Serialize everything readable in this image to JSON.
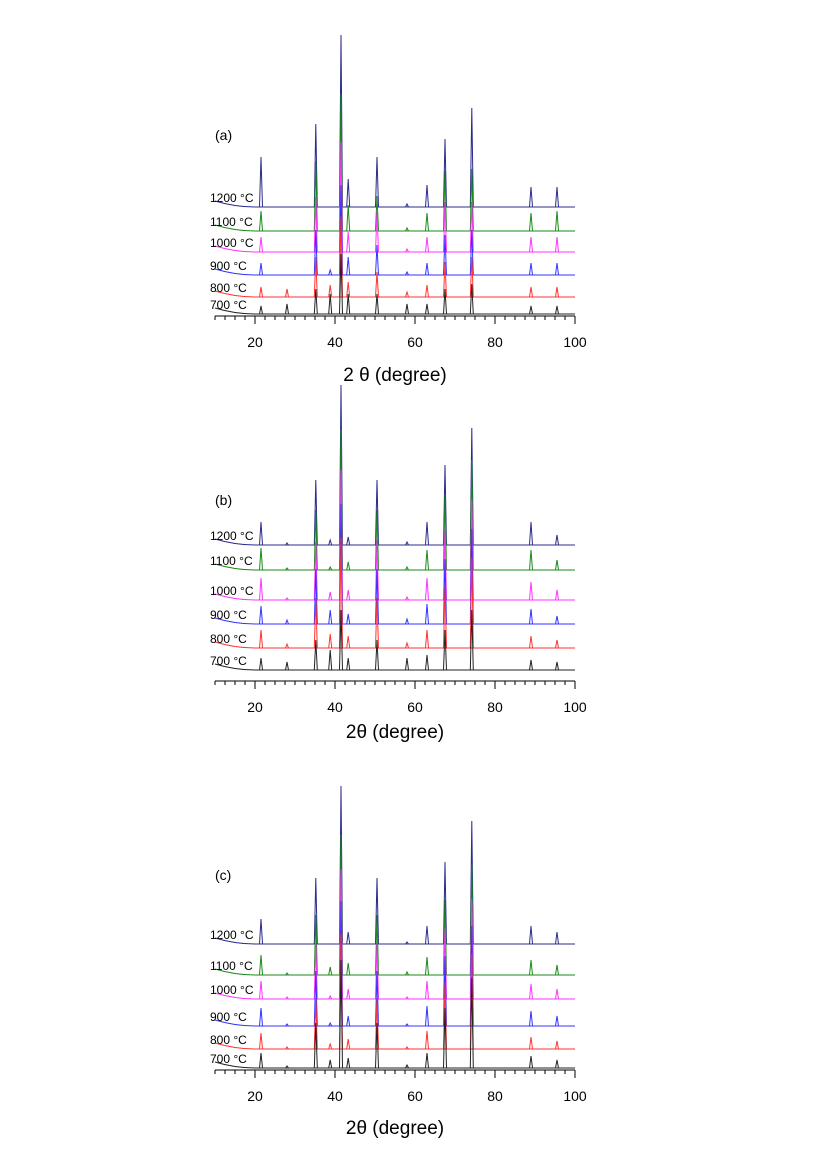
{
  "chart_data": [
    {
      "type": "line",
      "title": "(a)",
      "xlabel": "2 θ (degree)",
      "xlim": [
        10,
        100
      ],
      "xticks": [
        20,
        40,
        60,
        80,
        100
      ],
      "x": [
        21.5,
        28,
        35.2,
        38.8,
        41.5,
        43.3,
        50.5,
        58,
        63,
        67.5,
        74.2,
        89,
        95.5
      ],
      "series": [
        {
          "name": "1200 °C",
          "color": "#2b2b8c",
          "values": [
            50,
            0,
            83,
            0,
            172,
            28,
            50,
            3,
            22,
            68,
            99,
            20,
            20
          ]
        },
        {
          "name": "1100 °C",
          "color": "#1a8a1a",
          "values": [
            20,
            0,
            70,
            0,
            137,
            26,
            35,
            3,
            18,
            60,
            62,
            18,
            20
          ]
        },
        {
          "name": "1000 °C",
          "color": "#ff33ff",
          "values": [
            15,
            0,
            55,
            0,
            110,
            20,
            40,
            3,
            15,
            50,
            50,
            15,
            15
          ]
        },
        {
          "name": "900 °C",
          "color": "#3333ff",
          "values": [
            12,
            0,
            45,
            5,
            90,
            18,
            30,
            3,
            12,
            40,
            45,
            12,
            12
          ]
        },
        {
          "name": "800 °C",
          "color": "#ff3333",
          "values": [
            10,
            8,
            40,
            12,
            80,
            15,
            25,
            5,
            12,
            35,
            40,
            10,
            10
          ]
        },
        {
          "name": "700 °C",
          "color": "#222222",
          "values": [
            8,
            10,
            25,
            20,
            60,
            20,
            20,
            10,
            10,
            25,
            30,
            8,
            8
          ]
        }
      ]
    },
    {
      "type": "line",
      "title": "(b)",
      "xlabel": "2θ (degree)",
      "xlim": [
        10,
        100
      ],
      "xticks": [
        20,
        40,
        60,
        80,
        100
      ],
      "x": [
        21.5,
        28,
        35.2,
        38.8,
        41.5,
        43.3,
        50.5,
        58,
        63,
        67.5,
        74.2,
        89,
        95.5
      ],
      "series": [
        {
          "name": "1200 °C",
          "color": "#2b2b8c",
          "values": [
            23,
            2,
            65,
            5,
            160,
            8,
            65,
            3,
            23,
            80,
            117,
            23,
            10
          ]
        },
        {
          "name": "1100 °C",
          "color": "#1a8a1a",
          "values": [
            22,
            2,
            60,
            3,
            140,
            8,
            60,
            3,
            20,
            75,
            110,
            20,
            10
          ]
        },
        {
          "name": "1000 °C",
          "color": "#ff33ff",
          "values": [
            22,
            2,
            58,
            8,
            130,
            10,
            60,
            3,
            22,
            70,
            100,
            18,
            10
          ]
        },
        {
          "name": "900 °C",
          "color": "#3333ff",
          "values": [
            18,
            4,
            55,
            14,
            120,
            10,
            55,
            5,
            20,
            65,
            95,
            15,
            8
          ]
        },
        {
          "name": "800 °C",
          "color": "#ff3333",
          "values": [
            18,
            4,
            50,
            14,
            110,
            12,
            50,
            5,
            18,
            60,
            90,
            12,
            8
          ]
        },
        {
          "name": "700 °C",
          "color": "#222222",
          "values": [
            12,
            8,
            30,
            20,
            60,
            12,
            30,
            12,
            15,
            40,
            60,
            10,
            8
          ]
        }
      ]
    },
    {
      "type": "line",
      "title": "(c)",
      "xlabel": "2θ (degree)",
      "xlim": [
        10,
        100
      ],
      "xticks": [
        20,
        40,
        60,
        80,
        100
      ],
      "x": [
        21.5,
        28,
        35.2,
        38.8,
        41.5,
        43.3,
        50.5,
        58,
        63,
        67.5,
        74.2,
        89,
        95.5
      ],
      "series": [
        {
          "name": "1200 °C",
          "color": "#2b2b8c",
          "values": [
            25,
            0,
            66,
            0,
            158,
            12,
            66,
            2,
            18,
            82,
            123,
            18,
            12
          ]
        },
        {
          "name": "1100 °C",
          "color": "#1a8a1a",
          "values": [
            20,
            2,
            60,
            8,
            140,
            12,
            60,
            3,
            18,
            75,
            110,
            15,
            10
          ]
        },
        {
          "name": "1000 °C",
          "color": "#ff33ff",
          "values": [
            18,
            2,
            55,
            3,
            130,
            10,
            55,
            2,
            18,
            70,
            100,
            15,
            10
          ]
        },
        {
          "name": "900 °C",
          "color": "#3333ff",
          "values": [
            18,
            2,
            55,
            3,
            125,
            10,
            55,
            2,
            20,
            70,
            100,
            15,
            10
          ]
        },
        {
          "name": "800 °C",
          "color": "#ff3333",
          "values": [
            16,
            2,
            50,
            5,
            115,
            10,
            50,
            2,
            18,
            65,
            95,
            12,
            8
          ]
        },
        {
          "name": "700 °C",
          "color": "#222222",
          "values": [
            15,
            2,
            45,
            8,
            108,
            10,
            45,
            3,
            15,
            60,
            90,
            12,
            8
          ]
        }
      ]
    }
  ]
}
